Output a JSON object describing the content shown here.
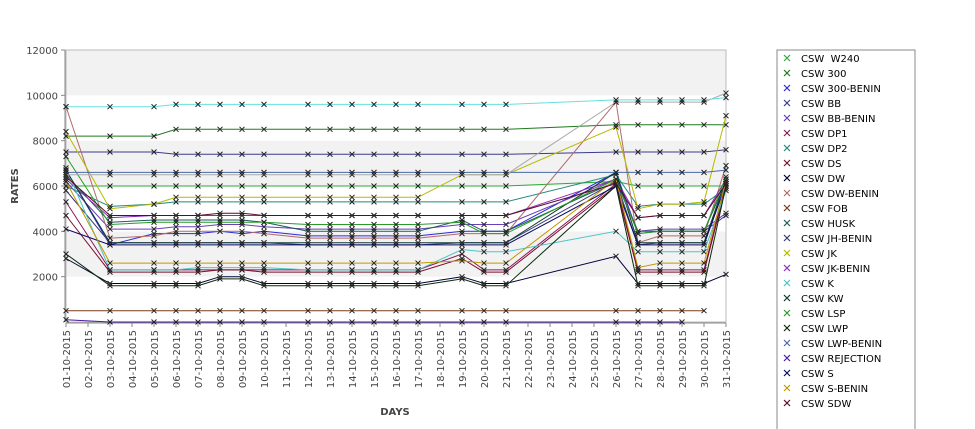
{
  "chart_data": {
    "type": "line",
    "title": "",
    "xlabel": "DAYS",
    "ylabel": "RATES",
    "ylim": [
      0,
      12000
    ],
    "yticks": [
      2000,
      4000,
      6000,
      8000,
      10000,
      12000
    ],
    "grid": false,
    "legend_position": "right",
    "categories": [
      "01-10-2015",
      "02-10-2015",
      "03-10-2015",
      "04-10-2015",
      "05-10-2015",
      "06-10-2015",
      "07-10-2015",
      "08-10-2015",
      "09-10-2015",
      "10-10-2015",
      "11-10-2015",
      "12-10-2015",
      "13-10-2015",
      "14-10-2015",
      "15-10-2015",
      "16-10-2015",
      "17-10-2015",
      "18-10-2015",
      "19-10-2015",
      "20-10-2015",
      "21-10-2015",
      "22-10-2015",
      "23-10-2015",
      "24-10-2015",
      "25-10-2015",
      "26-10-2015",
      "27-10-2015",
      "28-10-2015",
      "29-10-2015",
      "30-10-2015",
      "31-10-2015"
    ],
    "series": [
      {
        "name": "CSW  W240",
        "color": "#2eaa3a",
        "values": [
          6000,
          null,
          6000,
          null,
          6000,
          6000,
          6000,
          6000,
          6000,
          6000,
          null,
          6000,
          6000,
          6000,
          6000,
          6000,
          6000,
          null,
          6000,
          6000,
          6000,
          null,
          null,
          null,
          null,
          6200,
          6000,
          6000,
          6000,
          6000,
          6000
        ]
      },
      {
        "name": "CSW 300",
        "color": "#1f7a1f",
        "values": [
          8200,
          null,
          8200,
          null,
          8200,
          8500,
          8500,
          8500,
          8500,
          8500,
          null,
          8500,
          8500,
          8500,
          8500,
          8500,
          8500,
          null,
          8500,
          8500,
          8500,
          null,
          null,
          null,
          null,
          8700,
          8700,
          8700,
          8700,
          8700,
          8700
        ]
      },
      {
        "name": "CSW 300-BENIN",
        "color": "#2b2bd6",
        "values": [
          6700,
          null,
          3400,
          null,
          3900,
          3900,
          3900,
          4000,
          3900,
          4000,
          null,
          3800,
          3800,
          3800,
          3800,
          3800,
          3800,
          null,
          4000,
          4000,
          4000,
          null,
          null,
          null,
          null,
          6600,
          3900,
          4000,
          4000,
          4000,
          4700
        ]
      },
      {
        "name": "CSW BB",
        "color": "#3a3a8c",
        "values": [
          7500,
          null,
          7500,
          null,
          7500,
          7400,
          7400,
          7400,
          7400,
          7400,
          null,
          7400,
          7400,
          7400,
          7400,
          7400,
          7400,
          null,
          7400,
          7400,
          7400,
          null,
          null,
          null,
          null,
          7500,
          7500,
          7500,
          7500,
          7500,
          7600
        ]
      },
      {
        "name": "CSW BB-BENIN",
        "color": "#6a3fb8",
        "values": [
          6200,
          null,
          4100,
          null,
          4100,
          4200,
          4200,
          4300,
          4300,
          4200,
          null,
          4100,
          4100,
          4100,
          4100,
          4100,
          4100,
          null,
          4300,
          4300,
          4300,
          null,
          null,
          null,
          null,
          6300,
          4000,
          4100,
          4100,
          4100,
          4800
        ]
      },
      {
        "name": "CSW DP1",
        "color": "#8b1a5c",
        "values": [
          5300,
          null,
          2300,
          null,
          2300,
          2300,
          2300,
          2300,
          2300,
          2300,
          null,
          2300,
          2300,
          2300,
          2300,
          2300,
          2300,
          null,
          3000,
          2300,
          2300,
          null,
          null,
          null,
          null,
          6100,
          2300,
          2300,
          2300,
          2300,
          6100
        ]
      },
      {
        "name": "CSW DP2",
        "color": "#1f8a7a",
        "values": [
          6000,
          null,
          5100,
          null,
          5200,
          5300,
          5300,
          5300,
          5300,
          5300,
          null,
          5300,
          5300,
          5300,
          5300,
          5300,
          5300,
          null,
          5300,
          5300,
          5300,
          null,
          null,
          null,
          null,
          6500,
          5100,
          5200,
          5200,
          5200,
          5900
        ]
      },
      {
        "name": "CSW DS",
        "color": "#7a0f2a",
        "values": [
          4700,
          null,
          2200,
          null,
          2200,
          2200,
          2200,
          2300,
          2300,
          2200,
          null,
          2200,
          2200,
          2200,
          2200,
          2200,
          2200,
          null,
          2800,
          2200,
          2200,
          null,
          null,
          null,
          null,
          6000,
          2200,
          2200,
          2200,
          2200,
          6000
        ]
      },
      {
        "name": "CSW DW",
        "color": "#00003a",
        "values": [
          2800,
          null,
          1700,
          null,
          1700,
          1700,
          1700,
          2000,
          2000,
          1700,
          null,
          1700,
          1700,
          1700,
          1700,
          1700,
          1700,
          null,
          2000,
          1700,
          1700,
          null,
          null,
          null,
          null,
          2900,
          1700,
          1700,
          1700,
          1700,
          2100
        ]
      },
      {
        "name": "CSW DW-BENIN",
        "color": "#b36a6a",
        "values": [
          9500,
          null,
          3700,
          null,
          3800,
          4000,
          4000,
          4000,
          4000,
          3900,
          null,
          3700,
          3700,
          3700,
          3700,
          3700,
          3700,
          null,
          3900,
          3900,
          3900,
          null,
          null,
          null,
          null,
          9700,
          3500,
          3800,
          3800,
          3800,
          6900
        ]
      },
      {
        "name": "CSW FOB",
        "color": "#7a3a1a",
        "values": [
          500,
          null,
          500,
          null,
          500,
          500,
          500,
          500,
          500,
          500,
          null,
          500,
          500,
          500,
          500,
          500,
          500,
          null,
          500,
          500,
          500,
          null,
          null,
          null,
          null,
          500,
          500,
          500,
          500,
          500,
          null
        ]
      },
      {
        "name": "CSW HUSK",
        "color": "#1a5a5a",
        "values": [
          6500,
          null,
          4400,
          null,
          4500,
          4500,
          4500,
          4500,
          4500,
          4400,
          null,
          4000,
          4000,
          4000,
          4000,
          4000,
          4000,
          null,
          4500,
          4000,
          4000,
          null,
          null,
          null,
          null,
          6200,
          4000,
          4000,
          4000,
          4000,
          6200
        ]
      },
      {
        "name": "CSW JH-BENIN",
        "color": "#3a3a7a",
        "values": [
          5800,
          null,
          3500,
          null,
          3500,
          3500,
          3500,
          3500,
          3500,
          3500,
          null,
          3400,
          3400,
          3400,
          3400,
          3400,
          3400,
          null,
          3500,
          3500,
          3500,
          null,
          null,
          null,
          null,
          6200,
          3400,
          3500,
          3500,
          3500,
          6100
        ]
      },
      {
        "name": "CSW JK",
        "color": "#b8b800",
        "values": [
          8400,
          null,
          5000,
          null,
          5200,
          5500,
          5500,
          5500,
          5500,
          5500,
          null,
          5500,
          5500,
          5500,
          5500,
          5500,
          5500,
          null,
          6500,
          6500,
          6500,
          null,
          null,
          null,
          null,
          8600,
          5000,
          5200,
          5200,
          5300,
          9100
        ]
      },
      {
        "name": "CSW JK-BENIN",
        "color": "#8b2bb8",
        "values": [
          6300,
          null,
          4600,
          null,
          4700,
          4700,
          4700,
          4700,
          4700,
          4700,
          null,
          4700,
          4700,
          4700,
          4700,
          4700,
          4700,
          null,
          4700,
          4700,
          4700,
          null,
          null,
          null,
          null,
          6300,
          4600,
          4700,
          4700,
          4700,
          6300
        ]
      },
      {
        "name": "CSW K",
        "color": "#4ac6c6",
        "values": [
          6800,
          null,
          2300,
          null,
          2300,
          2300,
          2400,
          2400,
          2400,
          2400,
          null,
          2300,
          2300,
          2300,
          2300,
          2300,
          2300,
          null,
          3200,
          3100,
          3100,
          null,
          null,
          null,
          null,
          4000,
          3100,
          3100,
          3100,
          3100,
          5800
        ]
      },
      {
        "name": "CSW KW",
        "color": "#0f3a2a",
        "values": [
          6700,
          null,
          3500,
          null,
          3500,
          3500,
          3500,
          3500,
          3500,
          3500,
          null,
          3500,
          3500,
          3500,
          3500,
          3500,
          3500,
          null,
          3500,
          3500,
          3500,
          null,
          null,
          null,
          null,
          6600,
          3500,
          3500,
          3500,
          3500,
          6300
        ]
      },
      {
        "name": "CSW LSP",
        "color": "#2a9a2a",
        "values": [
          7300,
          null,
          4300,
          null,
          4400,
          4400,
          4400,
          4400,
          4400,
          4400,
          null,
          4300,
          4300,
          4300,
          4300,
          4300,
          4300,
          null,
          4400,
          3900,
          3900,
          null,
          null,
          null,
          null,
          6300,
          3900,
          4000,
          4000,
          4000,
          6400
        ]
      },
      {
        "name": "CSW LWP",
        "color": "#0a2a0a",
        "values": [
          3000,
          null,
          1600,
          null,
          1600,
          1600,
          1600,
          1900,
          1900,
          1600,
          null,
          1600,
          1600,
          1600,
          1600,
          1600,
          1600,
          null,
          1900,
          1600,
          1600,
          null,
          null,
          null,
          null,
          6000,
          1600,
          1600,
          1600,
          1600,
          6000
        ]
      },
      {
        "name": "CSW LWP-BENIN",
        "color": "#4a6aaa",
        "values": [
          6600,
          null,
          6600,
          null,
          6600,
          6600,
          6600,
          6600,
          6600,
          6600,
          null,
          6600,
          6600,
          6600,
          6600,
          6600,
          6600,
          null,
          6600,
          6600,
          6600,
          null,
          null,
          null,
          null,
          6600,
          6600,
          6600,
          6600,
          6600,
          6700
        ]
      },
      {
        "name": "CSW REJECTION",
        "color": "#4a1aa0",
        "values": [
          100,
          null,
          0,
          null,
          0,
          0,
          0,
          0,
          0,
          0,
          null,
          0,
          0,
          0,
          0,
          0,
          0,
          null,
          0,
          0,
          0,
          null,
          null,
          null,
          null,
          0,
          0,
          0,
          0,
          null,
          null
        ]
      },
      {
        "name": "CSW S",
        "color": "#0a0a6a",
        "values": [
          4100,
          null,
          3400,
          null,
          3400,
          3400,
          3400,
          3400,
          3400,
          3400,
          null,
          3400,
          3400,
          3400,
          3400,
          3400,
          3400,
          null,
          3400,
          3400,
          3400,
          null,
          null,
          null,
          null,
          6000,
          3400,
          3400,
          3400,
          3400,
          6100
        ]
      },
      {
        "name": "CSW S-BENIN",
        "color": "#c09a00",
        "values": [
          6200,
          null,
          2600,
          null,
          2600,
          2600,
          2600,
          2600,
          2600,
          2600,
          null,
          2600,
          2600,
          2600,
          2600,
          2600,
          2600,
          null,
          2700,
          2600,
          2600,
          null,
          null,
          null,
          null,
          6300,
          2400,
          2600,
          2600,
          2600,
          6200
        ]
      },
      {
        "name": "CSW SDW",
        "color": "#5a0a2a",
        "values": [
          6400,
          null,
          4700,
          null,
          4700,
          4700,
          4700,
          4800,
          4800,
          4700,
          null,
          4700,
          4700,
          4700,
          4700,
          4700,
          4700,
          null,
          4700,
          4700,
          4700,
          null,
          null,
          null,
          null,
          6100,
          4600,
          4700,
          4700,
          4700,
          6100
        ]
      },
      {
        "name": "",
        "color": "#aaaaaa",
        "values": [
          6500,
          null,
          6500,
          null,
          6500,
          6500,
          6500,
          6500,
          6500,
          6500,
          null,
          6500,
          6500,
          6500,
          6500,
          6500,
          6500,
          null,
          6500,
          6500,
          6500,
          null,
          null,
          null,
          null,
          9700,
          9700,
          9700,
          9700,
          9700,
          10100
        ]
      },
      {
        "name": "",
        "color": "#66e0e0",
        "values": [
          9500,
          null,
          9500,
          null,
          9500,
          9600,
          9600,
          9600,
          9600,
          9600,
          null,
          9600,
          9600,
          9600,
          9600,
          9600,
          9600,
          null,
          9600,
          9600,
          9600,
          null,
          null,
          null,
          null,
          9800,
          9800,
          9800,
          9800,
          9800,
          9900
        ]
      }
    ]
  }
}
